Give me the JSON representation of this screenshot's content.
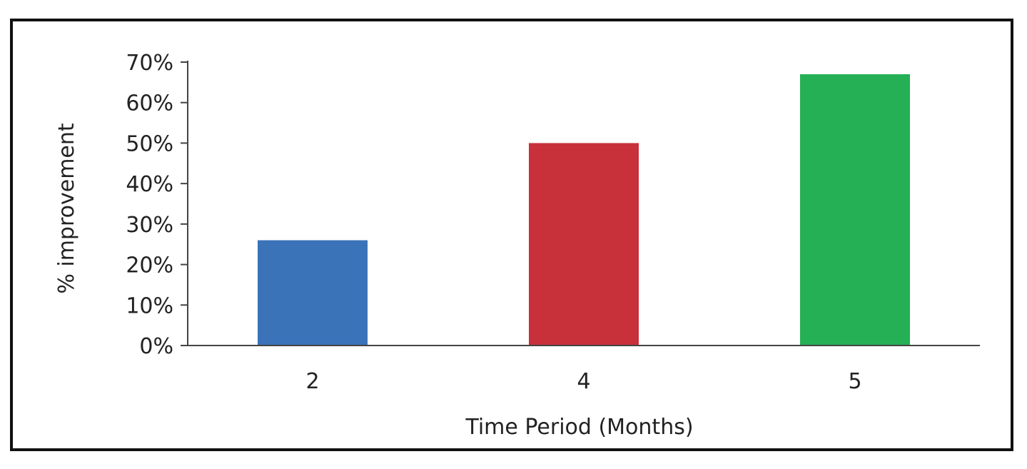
{
  "chart_data": {
    "type": "bar",
    "categories": [
      "2",
      "4",
      "5"
    ],
    "values": [
      26,
      50,
      67
    ],
    "colors": [
      "#3b73b9",
      "#c9313a",
      "#25b055"
    ],
    "title": "",
    "xlabel": "Time Period (Months)",
    "ylabel": "% improvement",
    "ylim": [
      0,
      70
    ],
    "yticks": [
      "0%",
      "10%",
      "20%",
      "30%",
      "40%",
      "50%",
      "60%",
      "70%"
    ],
    "grid": false
  }
}
